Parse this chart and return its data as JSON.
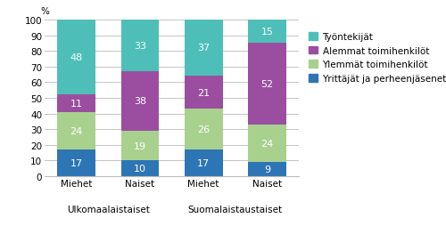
{
  "cat_labels": [
    "Miehet",
    "Naiset",
    "Miehet",
    "Naiset"
  ],
  "group_labels": [
    "Ulkomaalaistaiset",
    "Suomalaistaustaiset"
  ],
  "group_positions": [
    0.5,
    2.5
  ],
  "series": [
    {
      "name": "Yrittäjät ja perheenjäsenet",
      "values": [
        17,
        10,
        17,
        9
      ],
      "color": "#2E75B6"
    },
    {
      "name": "Ylemmät toimihenkilöt",
      "values": [
        24,
        19,
        26,
        24
      ],
      "color": "#A9D18E"
    },
    {
      "name": "Alemmat toimihenkilöt",
      "values": [
        11,
        38,
        21,
        52
      ],
      "color": "#9B4EA0"
    },
    {
      "name": "Työntekijät",
      "values": [
        48,
        33,
        37,
        15
      ],
      "color": "#4DBFB8"
    }
  ],
  "ylabel": "%",
  "ylim": [
    0,
    100
  ],
  "yticks": [
    0,
    10,
    20,
    30,
    40,
    50,
    60,
    70,
    80,
    90,
    100
  ],
  "legend_order": [
    3,
    2,
    1,
    0
  ],
  "bar_width": 0.6,
  "background_color": "#ffffff",
  "grid_color": "#bbbbbb",
  "label_fontsize": 8,
  "tick_fontsize": 7.5,
  "legend_fontsize": 7.5
}
